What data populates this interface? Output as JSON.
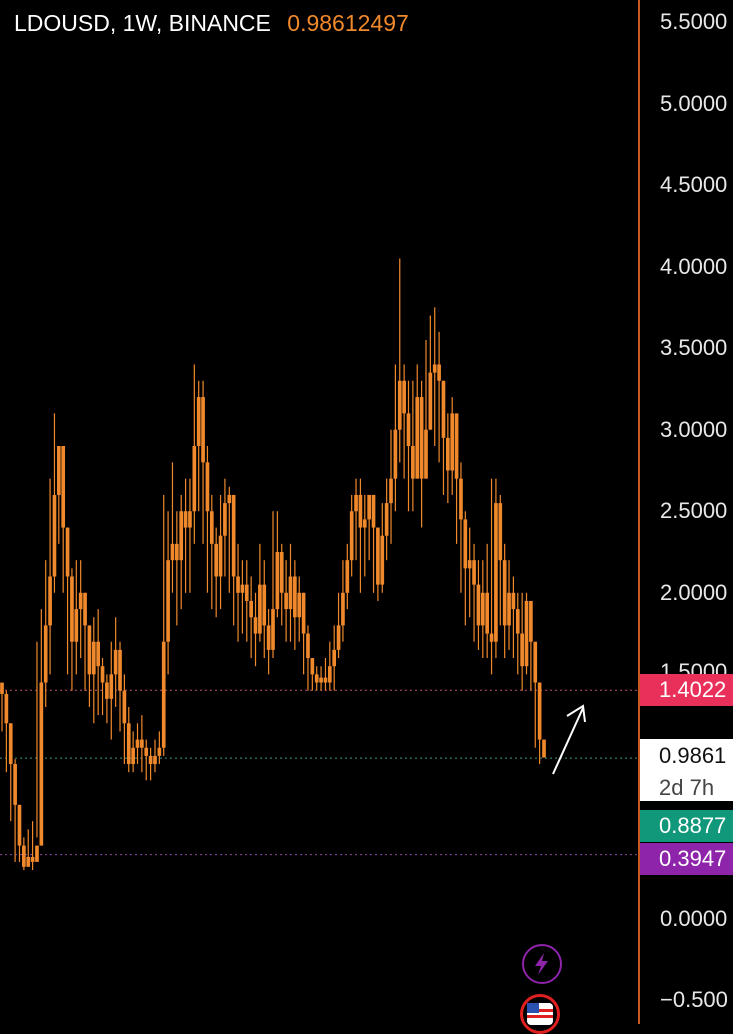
{
  "header": {
    "symbol": "LDOUSD, 1W, BINANCE",
    "last_price": "0.98612497"
  },
  "colors": {
    "candle": "#f0892c",
    "background": "#000000",
    "axis_border": "#c85a22",
    "badge_red": "#e8305a",
    "badge_green": "#11987a",
    "badge_purple": "#8e24aa",
    "badge_white": "#ffffff"
  },
  "axis": {
    "ticks": [
      "5.5000",
      "5.0000",
      "4.5000",
      "4.0000",
      "3.5000",
      "3.0000",
      "2.5000",
      "2.0000",
      "1.5000",
      "0.0000",
      "−0.500"
    ],
    "tick_values": [
      5.5,
      5.0,
      4.5,
      4.0,
      3.5,
      3.0,
      2.5,
      2.0,
      1.5,
      0.0,
      -0.5
    ]
  },
  "badges": {
    "level_1": "1.4022",
    "current_price": "0.9861",
    "countdown": "2d 7h",
    "level_2": "0.8877",
    "level_3": "0.3947"
  },
  "chart_data": {
    "type": "candlestick",
    "symbol": "LDOUSD",
    "interval": "1W",
    "exchange": "BINANCE",
    "ylim": [
      -0.55,
      5.6
    ],
    "horizontal_levels": [
      1.4022,
      0.9861,
      0.3947
    ],
    "closes": [
      1.38,
      1.2,
      0.95,
      0.7,
      0.45,
      0.32,
      0.38,
      0.35,
      0.45,
      1.45,
      1.8,
      2.1,
      2.6,
      2.9,
      2.4,
      2.1,
      1.7,
      1.9,
      2.0,
      1.8,
      1.5,
      1.7,
      1.55,
      1.45,
      1.35,
      1.5,
      1.65,
      1.4,
      1.2,
      0.95,
      1.05,
      1.1,
      1.05,
      1.0,
      0.95,
      1.0,
      1.05,
      1.7,
      2.2,
      2.3,
      2.2,
      2.5,
      2.4,
      2.5,
      2.9,
      3.2,
      2.8,
      2.5,
      2.3,
      2.1,
      2.35,
      2.55,
      2.6,
      2.1,
      2.0,
      2.05,
      1.95,
      1.85,
      1.75,
      2.05,
      1.8,
      1.65,
      1.9,
      2.25,
      2.0,
      1.9,
      2.1,
      1.85,
      2.0,
      1.75,
      1.6,
      1.5,
      1.45,
      1.48,
      1.45,
      1.55,
      1.65,
      1.8,
      2.0,
      2.2,
      2.5,
      2.6,
      2.4,
      2.45,
      2.6,
      2.4,
      2.05,
      2.35,
      2.55,
      2.7,
      3.0,
      3.3,
      3.1,
      2.9,
      2.7,
      3.2,
      2.7,
      3.0,
      3.35,
      3.4,
      3.3,
      2.95,
      2.75,
      3.1,
      2.7,
      2.45,
      2.15,
      2.2,
      2.05,
      1.8,
      2.0,
      1.75,
      1.7,
      2.55,
      2.2,
      1.8,
      2.0,
      1.9,
      1.75,
      1.55,
      1.95,
      1.7,
      1.45,
      1.1,
      0.99
    ],
    "lows": [
      1.15,
      0.9,
      0.6,
      0.35,
      0.35,
      0.3,
      0.32,
      0.3,
      0.5,
      1.2,
      1.3,
      1.5,
      2.0,
      2.3,
      2.0,
      1.5,
      1.4,
      1.5,
      1.6,
      1.4,
      1.3,
      1.2,
      1.25,
      1.25,
      1.2,
      1.1,
      1.3,
      1.15,
      0.95,
      0.9,
      0.9,
      0.95,
      0.9,
      0.85,
      0.85,
      0.9,
      0.95,
      1.0,
      1.5,
      2.0,
      1.8,
      1.9,
      2.0,
      2.0,
      2.3,
      2.5,
      2.3,
      2.0,
      1.9,
      1.85,
      1.9,
      2.1,
      2.0,
      1.8,
      1.7,
      1.75,
      1.7,
      1.6,
      1.55,
      1.7,
      1.6,
      1.5,
      1.6,
      1.85,
      1.8,
      1.7,
      1.7,
      1.65,
      1.7,
      1.5,
      1.4,
      1.4,
      1.4,
      1.4,
      1.4,
      1.4,
      1.4,
      1.6,
      1.7,
      1.9,
      2.1,
      2.2,
      2.0,
      2.1,
      2.2,
      2.0,
      1.95,
      2.0,
      2.2,
      2.3,
      2.5,
      2.8,
      2.7,
      2.5,
      2.5,
      2.7,
      2.4,
      2.7,
      3.0,
      2.9,
      2.8,
      2.6,
      2.55,
      2.6,
      2.3,
      2.0,
      1.8,
      1.85,
      1.7,
      1.65,
      1.6,
      1.6,
      1.5,
      1.6,
      1.8,
      1.6,
      1.65,
      1.6,
      1.5,
      1.4,
      1.5,
      1.4,
      1.05,
      0.95,
      0.99
    ],
    "highs": [
      1.45,
      1.4,
      1.2,
      0.98,
      0.7,
      0.5,
      0.55,
      0.6,
      1.7,
      1.9,
      2.2,
      2.7,
      3.1,
      2.9,
      2.9,
      2.4,
      2.15,
      2.2,
      2.2,
      2.0,
      1.8,
      1.85,
      1.9,
      1.6,
      1.5,
      1.7,
      1.85,
      1.7,
      1.5,
      1.3,
      1.15,
      1.2,
      1.25,
      1.1,
      1.05,
      1.1,
      1.15,
      2.6,
      2.5,
      2.8,
      2.5,
      2.6,
      2.7,
      2.7,
      3.4,
      3.3,
      3.3,
      2.9,
      2.6,
      2.4,
      2.6,
      2.7,
      2.65,
      2.6,
      2.3,
      2.2,
      2.2,
      2.1,
      2.0,
      2.3,
      2.2,
      1.9,
      2.5,
      2.5,
      2.3,
      2.2,
      2.3,
      2.2,
      2.1,
      2.0,
      1.8,
      1.6,
      1.55,
      1.55,
      1.6,
      1.7,
      1.8,
      2.0,
      2.2,
      2.3,
      2.6,
      2.7,
      2.7,
      2.6,
      2.6,
      2.6,
      2.4,
      2.55,
      2.7,
      3.0,
      3.4,
      4.05,
      3.4,
      3.3,
      3.3,
      3.4,
      3.3,
      3.55,
      3.7,
      3.75,
      3.6,
      3.3,
      3.1,
      3.2,
      3.1,
      2.8,
      2.5,
      2.4,
      2.3,
      2.2,
      2.2,
      2.3,
      2.7,
      2.7,
      2.6,
      2.3,
      2.2,
      2.1,
      2.0,
      2.0,
      2.0,
      1.95,
      1.7,
      1.3,
      1.1
    ]
  }
}
